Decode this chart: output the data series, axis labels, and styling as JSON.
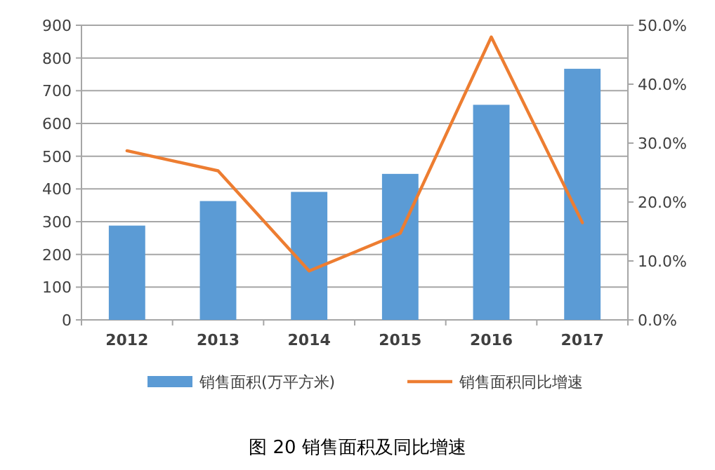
{
  "chart_data": {
    "type": "bar",
    "categories": [
      "2012",
      "2013",
      "2014",
      "2015",
      "2016",
      "2017"
    ],
    "series": [
      {
        "name": "销售面积(万平方米)",
        "color": "#5b9bd5",
        "values": [
          288,
          363,
          391,
          446,
          657,
          767
        ]
      },
      {
        "name": "销售面积同比增速",
        "type": "line",
        "axis": "y2",
        "color": "#ed7d31",
        "values": [
          28.7,
          25.3,
          8.3,
          14.7,
          48.0,
          16.5
        ]
      }
    ],
    "ylim": [
      0,
      900
    ],
    "yticks": [
      0,
      100,
      200,
      300,
      400,
      500,
      600,
      700,
      800,
      900
    ],
    "y2lim": [
      0,
      50
    ],
    "y2ticks": [
      {
        "value": 0,
        "label": "0.0%"
      },
      {
        "value": 10,
        "label": "10.0%"
      },
      {
        "value": 20,
        "label": "20.0%"
      },
      {
        "value": 30,
        "label": "30.0%"
      },
      {
        "value": 40,
        "label": "40.0%"
      },
      {
        "value": 50,
        "label": "50.0%"
      }
    ],
    "grid": "y",
    "legend": "bottom",
    "annotations": [
      "图 20 销售面积及同比增速"
    ]
  }
}
